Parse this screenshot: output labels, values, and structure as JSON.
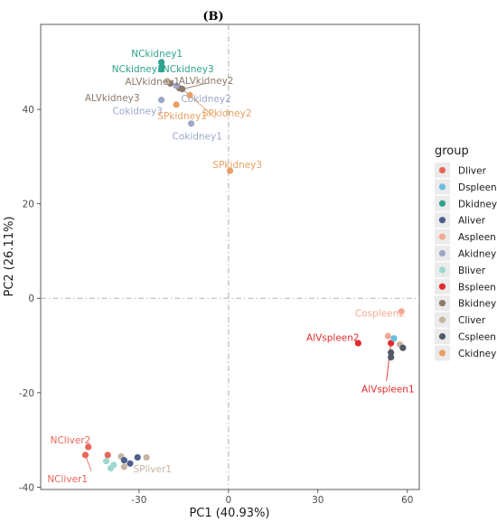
{
  "chart_data": {
    "type": "scatter",
    "panel_label": "(B)",
    "xlabel": "PC1 (40.93%)",
    "ylabel": "PC2 (26.11%)",
    "xlim": [
      -63,
      64
    ],
    "ylim": [
      -40.5,
      58
    ],
    "x_ticks": [
      -30,
      0,
      30,
      60
    ],
    "y_ticks": [
      -40,
      -20,
      0,
      20,
      40
    ],
    "grid": false,
    "reference_lines": {
      "x": 0,
      "y": 0
    },
    "legend": {
      "title": "group",
      "position": "right"
    },
    "groups": [
      {
        "name": "Dliver",
        "color": "#E8665B"
      },
      {
        "name": "Dspleen",
        "color": "#6CBFE0"
      },
      {
        "name": "Dkidney",
        "color": "#2FA38E"
      },
      {
        "name": "Aliver",
        "color": "#4E5F8E"
      },
      {
        "name": "Aspleen",
        "color": "#F5A892"
      },
      {
        "name": "Akidney",
        "color": "#9DA8C9"
      },
      {
        "name": "Bliver",
        "color": "#9ED7CF"
      },
      {
        "name": "Bspleen",
        "color": "#E02C2C"
      },
      {
        "name": "Bkidney",
        "color": "#8C7A6A"
      },
      {
        "name": "Cliver",
        "color": "#C7B5A2"
      },
      {
        "name": "Cspleen",
        "color": "#525A66"
      },
      {
        "name": "Ckidney",
        "color": "#E8A061"
      }
    ],
    "points": [
      {
        "group": "Dkidney",
        "x": -22.5,
        "y": 50
      },
      {
        "group": "Dkidney",
        "x": -22.5,
        "y": 48.5
      },
      {
        "group": "Dkidney",
        "x": -22.3,
        "y": 49
      },
      {
        "group": "Bkidney",
        "x": -19.5,
        "y": 45.5
      },
      {
        "group": "Bkidney",
        "x": -16.5,
        "y": 44.5
      },
      {
        "group": "Bkidney",
        "x": -15.5,
        "y": 44.3
      },
      {
        "group": "Cliver",
        "x": -20.5,
        "y": 46
      },
      {
        "group": "Akidney",
        "x": -22.5,
        "y": 42
      },
      {
        "group": "Akidney",
        "x": -17.5,
        "y": 45
      },
      {
        "group": "Akidney",
        "x": -12.5,
        "y": 37
      },
      {
        "group": "Ckidney",
        "x": -17.5,
        "y": 41
      },
      {
        "group": "Ckidney",
        "x": -13,
        "y": 43
      },
      {
        "group": "Ckidney",
        "x": 0.5,
        "y": 27
      },
      {
        "group": "Aspleen",
        "x": 58,
        "y": -2.8
      },
      {
        "group": "Bspleen",
        "x": 43.5,
        "y": -9.5
      },
      {
        "group": "Bspleen",
        "x": 54.5,
        "y": -9.5
      },
      {
        "group": "Aspleen",
        "x": 53.5,
        "y": -8
      },
      {
        "group": "Dspleen",
        "x": 55.5,
        "y": -8.5
      },
      {
        "group": "Cliver",
        "x": 57.5,
        "y": -9.8
      },
      {
        "group": "Cspleen",
        "x": 58.5,
        "y": -10.5
      },
      {
        "group": "Cspleen",
        "x": 54.5,
        "y": -11.5
      },
      {
        "group": "Cspleen",
        "x": 54.5,
        "y": -12.5
      },
      {
        "group": "Dliver",
        "x": -47,
        "y": -31.5
      },
      {
        "group": "Dliver",
        "x": -48,
        "y": -33.2
      },
      {
        "group": "Dliver",
        "x": -40.5,
        "y": -33.2
      },
      {
        "group": "Bliver",
        "x": -41,
        "y": -34.5
      },
      {
        "group": "Bliver",
        "x": -39.5,
        "y": -36
      },
      {
        "group": "Bliver",
        "x": -38.5,
        "y": -35.3
      },
      {
        "group": "Cliver",
        "x": -36,
        "y": -33.5
      },
      {
        "group": "Cliver",
        "x": -35,
        "y": -35.7
      },
      {
        "group": "Cliver",
        "x": -27.5,
        "y": -33.7
      },
      {
        "group": "Aliver",
        "x": -35,
        "y": -34.3
      },
      {
        "group": "Aliver",
        "x": -33,
        "y": -35
      },
      {
        "group": "Aliver",
        "x": -30.5,
        "y": -33.7
      }
    ],
    "annotations": [
      {
        "text": "NCkidney1",
        "group": "Dkidney",
        "x": -24,
        "y": 51.8,
        "anchor": "middle"
      },
      {
        "text": "NCkidney2",
        "group": "Dkidney",
        "x": -30.5,
        "y": 48.5,
        "anchor": "middle"
      },
      {
        "text": "NCkidney3",
        "group": "Dkidney",
        "x": -13.5,
        "y": 48.5,
        "anchor": "middle"
      },
      {
        "text": "ALVkidney1",
        "group": "Bkidney",
        "x": -25.5,
        "y": 45.9,
        "anchor": "middle"
      },
      {
        "text": "ALVkidney2",
        "group": "Bkidney",
        "x": -7.5,
        "y": 46.0,
        "anchor": "middle"
      },
      {
        "text": "ALVkidney3",
        "group": "Bkidney",
        "x": -39,
        "y": 42.4,
        "anchor": "middle"
      },
      {
        "text": "Cokidney2",
        "group": "Akidney",
        "x": -7.5,
        "y": 42.2,
        "anchor": "middle"
      },
      {
        "text": "Cokidney3",
        "group": "Akidney",
        "x": -30.5,
        "y": 39.6,
        "anchor": "middle"
      },
      {
        "text": "Cokidney1",
        "group": "Akidney",
        "x": -10.5,
        "y": 34.3,
        "anchor": "middle"
      },
      {
        "text": "SPkidney1",
        "group": "Ckidney",
        "x": -15.5,
        "y": 38.6,
        "anchor": "middle"
      },
      {
        "text": "SPkidney2",
        "group": "Ckidney",
        "x": -0.5,
        "y": 39.2,
        "anchor": "middle"
      },
      {
        "text": "SPkidney3",
        "group": "Ckidney",
        "x": 3,
        "y": 28.3,
        "anchor": "middle"
      },
      {
        "text": "Cospleen2",
        "group": "Aspleen",
        "x": 50.8,
        "y": -3.2,
        "anchor": "middle"
      },
      {
        "text": "AlVspleen2",
        "group": "Bspleen",
        "x": 35,
        "y": -8.4,
        "anchor": "middle"
      },
      {
        "text": "AlVspleen1",
        "group": "Bspleen",
        "x": 53.5,
        "y": -19.3,
        "anchor": "middle"
      },
      {
        "text": "NCliver2",
        "group": "Dliver",
        "x": -53,
        "y": -30.1,
        "anchor": "middle"
      },
      {
        "text": "NCliver1",
        "group": "Dliver",
        "x": -54,
        "y": -38.3,
        "anchor": "middle"
      },
      {
        "text": "SPliver1",
        "group": "Cliver",
        "x": -25.5,
        "y": -36.2,
        "anchor": "middle"
      }
    ],
    "connectors": [
      {
        "group": "Bkidney",
        "x1": -15.5,
        "y1": 44.3,
        "x2": -7.5,
        "y2": 45.5
      },
      {
        "group": "Akidney",
        "x1": -17.5,
        "y1": 45,
        "x2": -12,
        "y2": 42.7
      },
      {
        "group": "Ckidney",
        "x1": -13,
        "y1": 43,
        "x2": -4.5,
        "y2": 38.2
      },
      {
        "group": "Dliver",
        "x1": -48,
        "y1": -33.2,
        "x2": -46,
        "y2": -36.6
      },
      {
        "group": "Bspleen",
        "x1": 54.5,
        "y1": -9.5,
        "x2": 53,
        "y2": -17.5
      }
    ]
  }
}
